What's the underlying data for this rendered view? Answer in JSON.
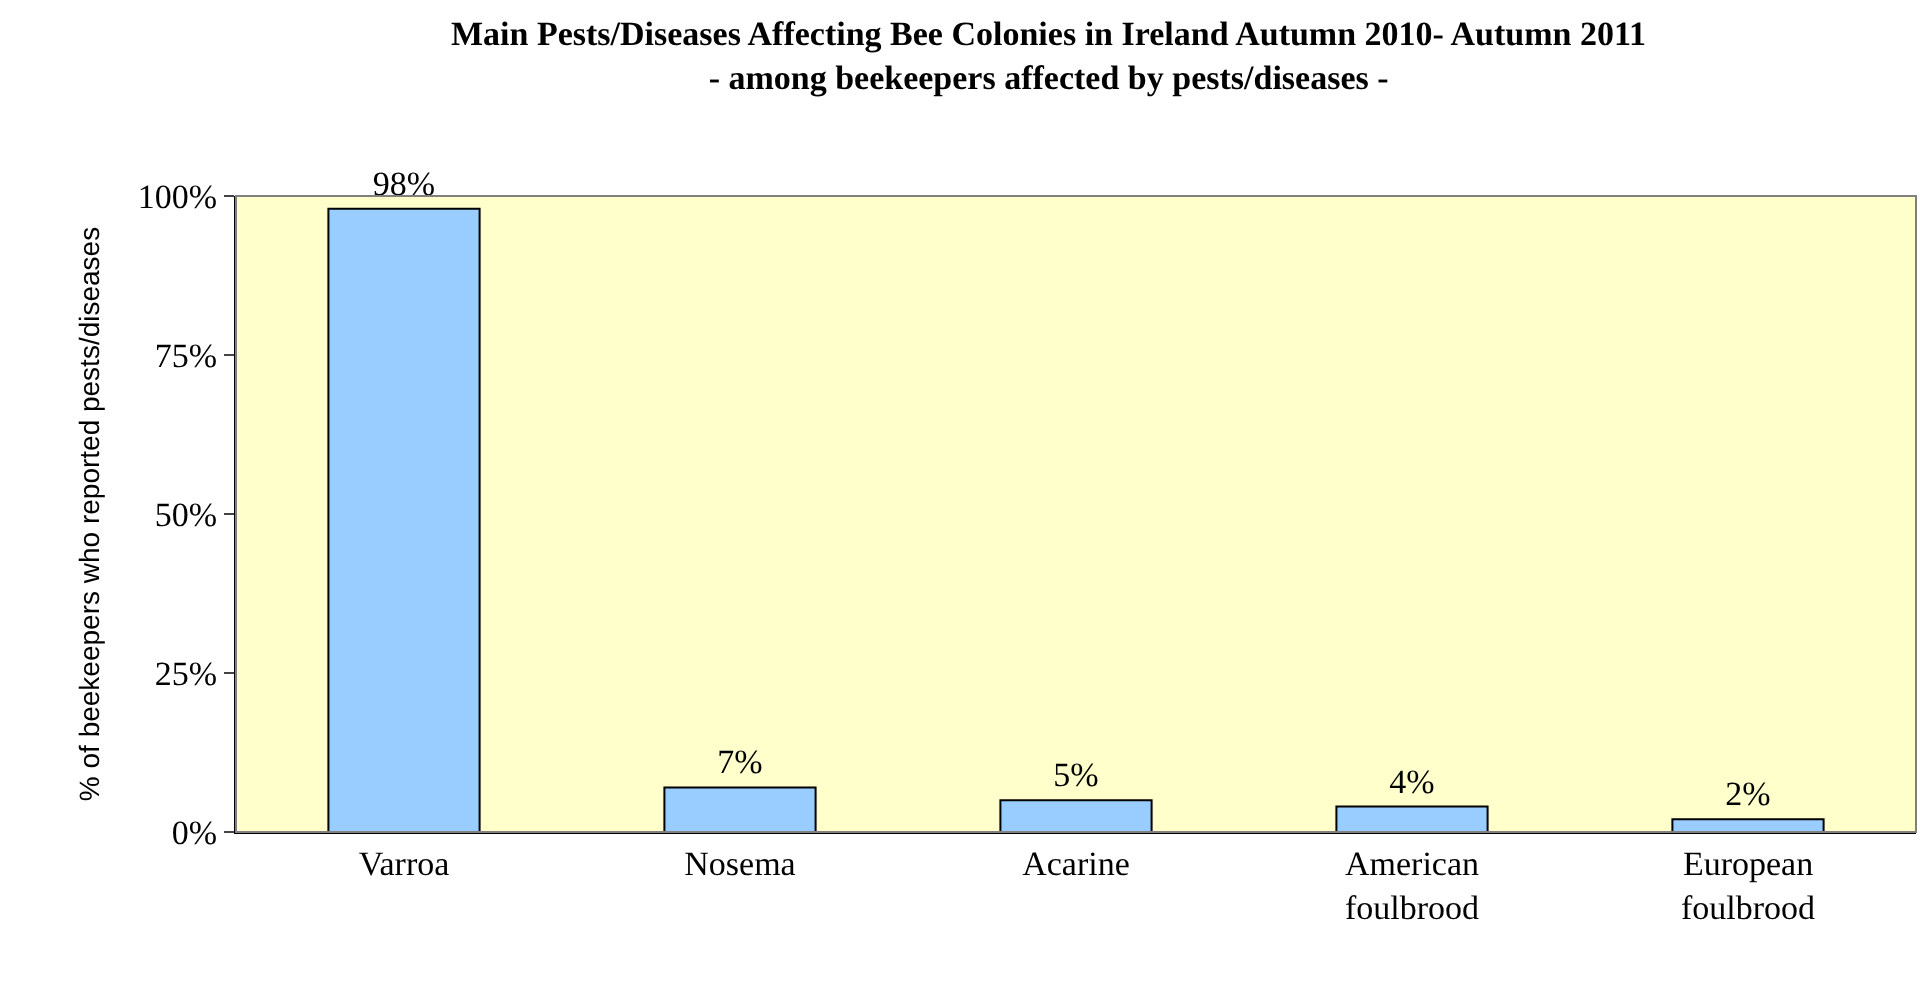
{
  "chart_data": {
    "type": "bar",
    "title": "Main Pests/Diseases Affecting Bee Colonies in Ireland Autumn 2010- Autumn 2011",
    "subtitle": "- among beekeepers affected by pests/diseases -",
    "ylabel": "% of beekeepers who reported pests/diseases",
    "categories": [
      "Varroa",
      "Nosema",
      "Acarine",
      "American foulbrood",
      "European foulbrood"
    ],
    "values": [
      98,
      7,
      5,
      4,
      2
    ],
    "value_labels": [
      "98%",
      "7%",
      "5%",
      "4%",
      "2%"
    ],
    "color": "#99ccff",
    "ylim": [
      0,
      100
    ],
    "yticks": [
      {
        "value": 0,
        "label": "0%"
      },
      {
        "value": 25,
        "label": "25%"
      },
      {
        "value": 50,
        "label": "50%"
      },
      {
        "value": 75,
        "label": "75%"
      },
      {
        "value": 100,
        "label": "100%"
      }
    ],
    "grid": false,
    "legend": false
  }
}
